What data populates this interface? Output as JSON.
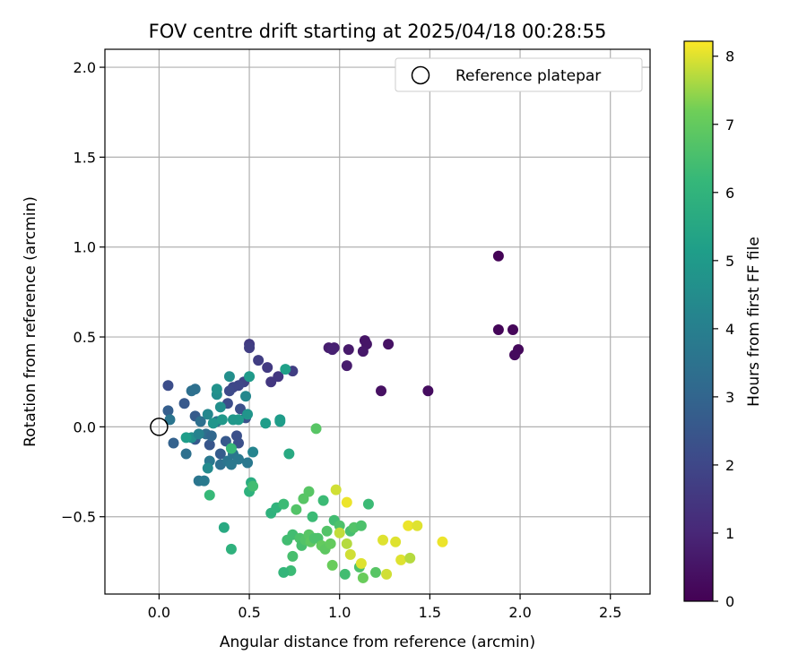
{
  "chart_data": {
    "type": "scatter",
    "title": "FOV centre drift starting at 2025/04/18 00:28:55",
    "xlabel": "Angular distance from reference (arcmin)",
    "ylabel": "Rotation from reference (arcmin)",
    "xlim": [
      -0.3,
      2.72
    ],
    "ylim": [
      -0.93,
      2.1
    ],
    "x_ticks": [
      0.0,
      0.5,
      1.0,
      1.5,
      2.0,
      2.5
    ],
    "x_tick_labels": [
      "0.0",
      "0.5",
      "1.0",
      "1.5",
      "2.0",
      "2.5"
    ],
    "y_ticks": [
      -0.5,
      0.0,
      0.5,
      1.0,
      1.5,
      2.0
    ],
    "y_tick_labels": [
      "−0.5",
      "0.0",
      "0.5",
      "1.0",
      "1.5",
      "2.0"
    ],
    "grid": true,
    "legend": {
      "position": "top-right",
      "entries": [
        "Reference platepar"
      ]
    },
    "reference_point": {
      "x": 0.0,
      "y": 0.0
    },
    "colorbar": {
      "label": "Hours from first FF file",
      "colormap": "viridis",
      "min": 0,
      "max": 8.22,
      "ticks": [
        0,
        1,
        2,
        3,
        4,
        5,
        6,
        7,
        8
      ],
      "tick_labels": [
        "0",
        "1",
        "2",
        "3",
        "4",
        "5",
        "6",
        "7",
        "8"
      ]
    },
    "points": [
      [
        1.88,
        0.95,
        0.05
      ],
      [
        1.88,
        0.54,
        0.1
      ],
      [
        1.96,
        0.54,
        0.15
      ],
      [
        1.99,
        0.43,
        0.2
      ],
      [
        1.97,
        0.4,
        0.25
      ],
      [
        1.49,
        0.2,
        0.3
      ],
      [
        1.23,
        0.2,
        0.4
      ],
      [
        1.27,
        0.46,
        0.45
      ],
      [
        1.14,
        0.48,
        0.5
      ],
      [
        1.15,
        0.46,
        0.55
      ],
      [
        1.13,
        0.42,
        0.6
      ],
      [
        1.05,
        0.43,
        0.65
      ],
      [
        1.04,
        0.34,
        0.7
      ],
      [
        0.94,
        0.44,
        0.75
      ],
      [
        0.97,
        0.44,
        0.8
      ],
      [
        0.96,
        0.43,
        0.85
      ],
      [
        0.74,
        0.31,
        1.7
      ],
      [
        0.66,
        0.28,
        1.5
      ],
      [
        0.62,
        0.25,
        1.5
      ],
      [
        0.6,
        0.33,
        1.6
      ],
      [
        0.55,
        0.37,
        1.7
      ],
      [
        0.5,
        0.46,
        1.6
      ],
      [
        0.5,
        0.44,
        1.7
      ],
      [
        0.47,
        0.25,
        1.9
      ],
      [
        0.44,
        0.23,
        2.0
      ],
      [
        0.41,
        0.22,
        2.0
      ],
      [
        0.39,
        0.2,
        2.1
      ],
      [
        0.38,
        0.13,
        2.2
      ],
      [
        0.45,
        0.1,
        2.3
      ],
      [
        0.48,
        0.05,
        2.4
      ],
      [
        0.43,
        -0.05,
        2.3
      ],
      [
        0.44,
        -0.09,
        2.3
      ],
      [
        0.37,
        -0.08,
        2.6
      ],
      [
        0.34,
        -0.15,
        2.7
      ],
      [
        0.28,
        -0.1,
        2.5
      ],
      [
        0.2,
        -0.07,
        2.6
      ],
      [
        0.14,
        0.13,
        2.6
      ],
      [
        0.2,
        0.06,
        2.7
      ],
      [
        0.05,
        0.23,
        2.2
      ],
      [
        0.05,
        0.09,
        2.8
      ],
      [
        0.06,
        0.04,
        3.6
      ],
      [
        0.08,
        -0.09,
        2.9
      ],
      [
        0.15,
        -0.15,
        3.4
      ],
      [
        0.18,
        0.2,
        3.4
      ],
      [
        0.2,
        0.21,
        3.4
      ],
      [
        0.22,
        -0.3,
        3.6
      ],
      [
        0.25,
        -0.3,
        3.8
      ],
      [
        0.26,
        -0.04,
        3.3
      ],
      [
        0.29,
        -0.05,
        3.1
      ],
      [
        0.23,
        0.03,
        3.4
      ],
      [
        0.28,
        -0.19,
        3.7
      ],
      [
        0.27,
        -0.23,
        4.4
      ],
      [
        0.32,
        0.03,
        3.6
      ],
      [
        0.34,
        -0.21,
        3.4
      ],
      [
        0.38,
        -0.19,
        3.6
      ],
      [
        0.4,
        -0.21,
        3.7
      ],
      [
        0.41,
        -0.15,
        3.6
      ],
      [
        0.44,
        -0.18,
        3.7
      ],
      [
        0.49,
        -0.2,
        3.7
      ],
      [
        0.52,
        -0.14,
        4.2
      ],
      [
        0.39,
        0.28,
        4.6
      ],
      [
        0.48,
        0.17,
        4.3
      ],
      [
        0.5,
        0.28,
        5.0
      ],
      [
        0.49,
        0.07,
        4.8
      ],
      [
        0.44,
        0.04,
        5.0
      ],
      [
        0.41,
        0.04,
        4.9
      ],
      [
        0.34,
        0.11,
        4.6
      ],
      [
        0.32,
        0.18,
        4.5
      ],
      [
        0.32,
        0.21,
        4.7
      ],
      [
        0.27,
        0.07,
        4.3
      ],
      [
        0.3,
        0.02,
        4.8
      ],
      [
        0.35,
        0.04,
        4.9
      ],
      [
        0.18,
        -0.06,
        4.6
      ],
      [
        0.22,
        -0.04,
        4.1
      ],
      [
        0.15,
        -0.06,
        5.1
      ],
      [
        0.59,
        0.02,
        5.1
      ],
      [
        0.67,
        0.04,
        5.0
      ],
      [
        0.67,
        0.03,
        5.1
      ],
      [
        0.7,
        0.32,
        5.2
      ],
      [
        0.72,
        -0.15,
        5.6
      ],
      [
        0.51,
        -0.31,
        5.7
      ],
      [
        0.5,
        -0.36,
        5.9
      ],
      [
        0.4,
        -0.12,
        6.2
      ],
      [
        0.36,
        -0.56,
        5.6
      ],
      [
        0.4,
        -0.68,
        5.9
      ],
      [
        0.28,
        -0.38,
        6.2
      ],
      [
        0.52,
        -0.33,
        6.4
      ],
      [
        0.62,
        -0.48,
        5.9
      ],
      [
        0.65,
        -0.45,
        6.0
      ],
      [
        0.69,
        -0.43,
        6.3
      ],
      [
        0.73,
        -0.8,
        6.3
      ],
      [
        0.69,
        -0.81,
        6.1
      ],
      [
        0.71,
        -0.63,
        6.4
      ],
      [
        0.74,
        -0.6,
        6.4
      ],
      [
        0.74,
        -0.72,
        6.5
      ],
      [
        0.76,
        -0.46,
        6.7
      ],
      [
        0.8,
        -0.4,
        6.8
      ],
      [
        0.83,
        -0.36,
        6.8
      ],
      [
        0.85,
        -0.5,
        6.3
      ],
      [
        0.87,
        -0.01,
        6.8
      ],
      [
        0.91,
        -0.41,
        6.3
      ],
      [
        0.93,
        -0.58,
        6.7
      ],
      [
        0.78,
        -0.62,
        6.6
      ],
      [
        0.79,
        -0.66,
        6.5
      ],
      [
        0.81,
        -0.63,
        6.7
      ],
      [
        0.83,
        -0.6,
        6.8
      ],
      [
        0.84,
        -0.64,
        6.9
      ],
      [
        0.86,
        -0.62,
        6.6
      ],
      [
        0.88,
        -0.62,
        6.6
      ],
      [
        0.9,
        -0.66,
        7.0
      ],
      [
        0.92,
        -0.68,
        6.9
      ],
      [
        0.95,
        -0.65,
        7.0
      ],
      [
        0.96,
        -0.77,
        7.1
      ],
      [
        0.97,
        -0.52,
        6.4
      ],
      [
        1.0,
        -0.55,
        6.6
      ],
      [
        1.03,
        -0.82,
        6.4
      ],
      [
        1.06,
        -0.58,
        6.5
      ],
      [
        1.08,
        -0.56,
        6.7
      ],
      [
        1.11,
        -0.78,
        6.6
      ],
      [
        1.12,
        -0.55,
        6.6
      ],
      [
        1.16,
        -0.43,
        6.3
      ],
      [
        1.13,
        -0.84,
        7.1
      ],
      [
        1.2,
        -0.81,
        6.8
      ],
      [
        0.98,
        -0.35,
        7.9
      ],
      [
        1.04,
        -0.42,
        8.1
      ],
      [
        1.0,
        -0.59,
        7.8
      ],
      [
        1.04,
        -0.65,
        7.7
      ],
      [
        1.06,
        -0.71,
        7.9
      ],
      [
        1.12,
        -0.76,
        8.0
      ],
      [
        1.24,
        -0.63,
        8.0
      ],
      [
        1.26,
        -0.82,
        7.9
      ],
      [
        1.31,
        -0.64,
        8.0
      ],
      [
        1.34,
        -0.74,
        8.0
      ],
      [
        1.39,
        -0.73,
        7.7
      ],
      [
        1.38,
        -0.55,
        8.1
      ],
      [
        1.43,
        -0.55,
        8.0
      ],
      [
        1.57,
        -0.64,
        8.1
      ]
    ]
  }
}
